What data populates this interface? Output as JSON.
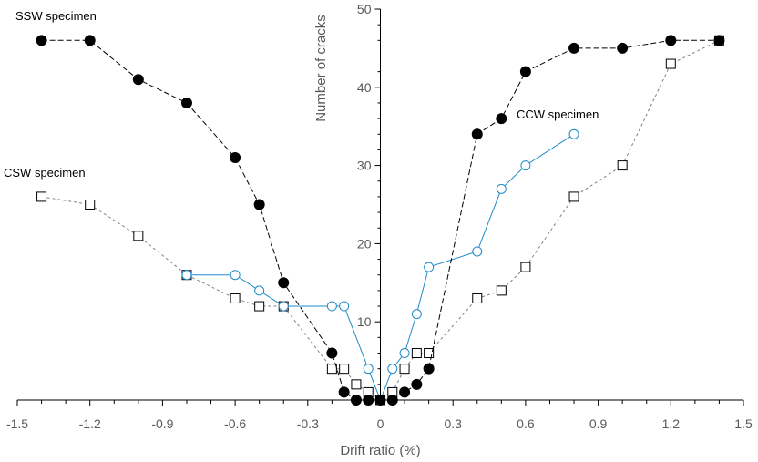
{
  "chart_data": {
    "type": "scatter",
    "xlabel": "Drift ratio (%)",
    "ylabel": "Number of cracks",
    "xlim": [
      -1.5,
      1.5
    ],
    "ylim": [
      0,
      50
    ],
    "x_ticks": [
      "-1.5",
      "-1.2",
      "-0.9",
      "-0.6",
      "-0.3",
      "0",
      "0.3",
      "0.6",
      "0.9",
      "1.2",
      "1.5"
    ],
    "y_ticks": [
      "10",
      "20",
      "30",
      "40",
      "50"
    ],
    "grid": false,
    "legend": "none",
    "annotations": [
      {
        "id": "ssw",
        "text": "SSW specimen"
      },
      {
        "id": "csw",
        "text": "CSW specimen"
      },
      {
        "id": "ccw",
        "text": "CCW specimen"
      }
    ],
    "series": [
      {
        "key": "ssw",
        "marker": "filled-circle",
        "line": "dashed",
        "color": "#000000",
        "x": [
          -1.4,
          -1.2,
          -1.0,
          -0.8,
          -0.6,
          -0.5,
          -0.4,
          -0.2,
          -0.15,
          -0.1,
          -0.05,
          0.0,
          0.05,
          0.1,
          0.15,
          0.2,
          0.4,
          0.5,
          0.6,
          0.8,
          1.0,
          1.2,
          1.4
        ],
        "y": [
          46,
          46,
          41,
          38,
          31,
          25,
          15,
          6,
          1,
          0,
          0,
          0,
          0,
          1,
          2,
          4,
          34,
          36,
          42,
          45,
          45,
          46,
          46
        ]
      },
      {
        "key": "csw",
        "marker": "open-square",
        "line": "dotted",
        "color": "#808080",
        "x": [
          -1.4,
          -1.2,
          -1.0,
          -0.8,
          -0.6,
          -0.5,
          -0.4,
          -0.2,
          -0.15,
          -0.1,
          -0.05,
          0.0,
          0.05,
          0.1,
          0.15,
          0.2,
          0.4,
          0.5,
          0.6,
          0.8,
          1.0,
          1.2,
          1.4
        ],
        "y": [
          26,
          25,
          21,
          16,
          13,
          12,
          12,
          4,
          4,
          2,
          1,
          0,
          1,
          4,
          6,
          6,
          13,
          14,
          17,
          26,
          30,
          43,
          46
        ]
      },
      {
        "key": "ccw",
        "marker": "open-circle",
        "line": "solid",
        "color": "#1f8bc9",
        "x": [
          -0.8,
          -0.6,
          -0.5,
          -0.4,
          -0.2,
          -0.15,
          -0.05,
          0.0,
          0.05,
          0.1,
          0.15,
          0.2,
          0.4,
          0.5,
          0.6,
          0.8
        ],
        "y": [
          16,
          16,
          14,
          12,
          12,
          12,
          4,
          0,
          4,
          6,
          11,
          17,
          19,
          27,
          30,
          34
        ]
      }
    ]
  }
}
